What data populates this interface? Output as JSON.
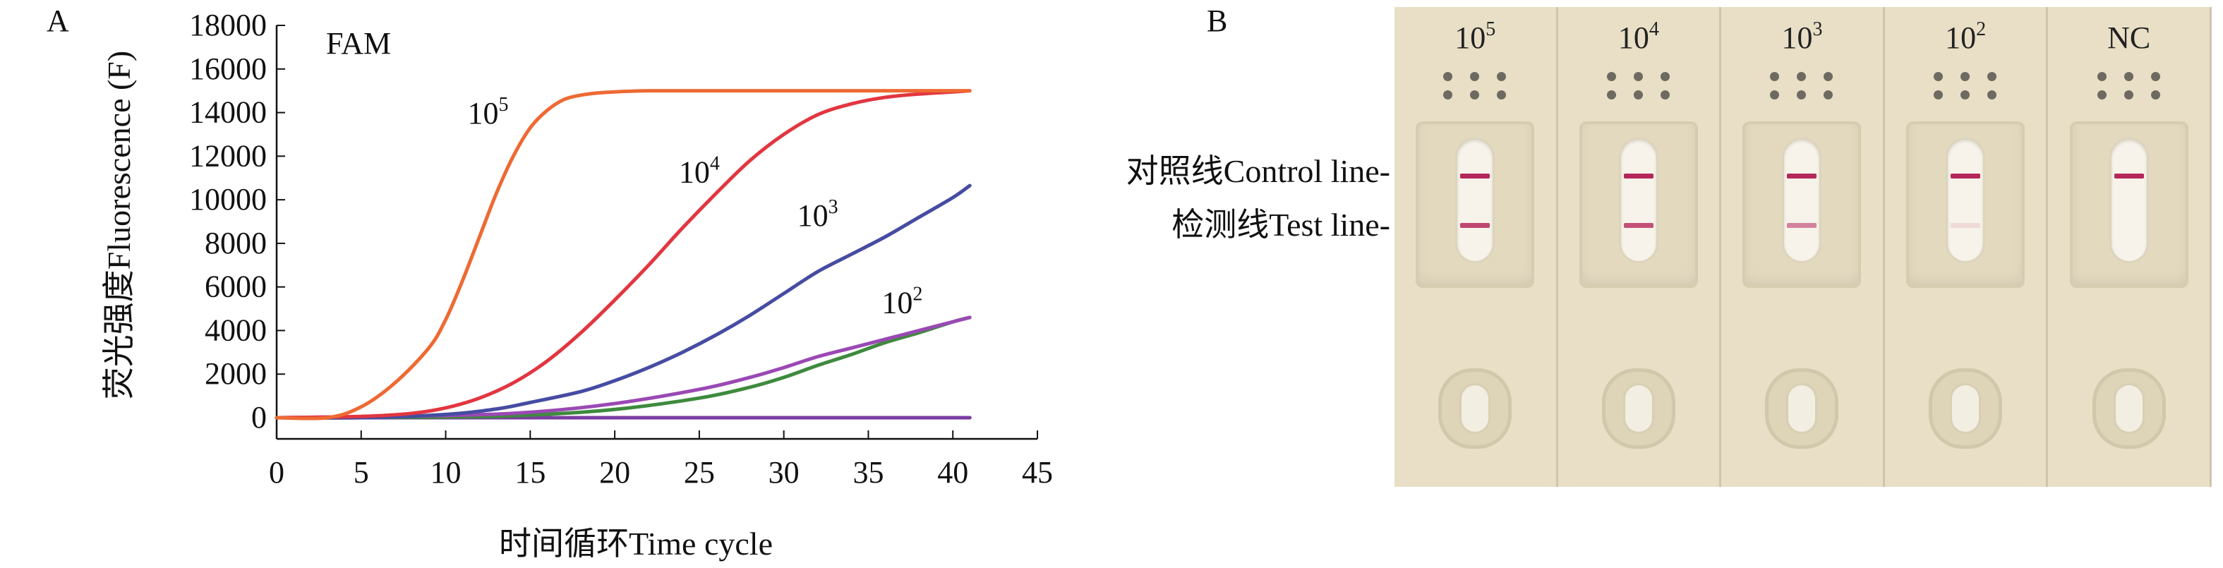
{
  "panel_a": {
    "letter": "A",
    "chart_data": {
      "type": "line",
      "title": "FAM",
      "xlabel": "时间循环Time cycle",
      "ylabel": "荧光强度Fluorescence (F)",
      "xlim": [
        0,
        45
      ],
      "ylim": [
        0,
        18000
      ],
      "x_ticks": [
        "0",
        "5",
        "10",
        "15",
        "20",
        "25",
        "30",
        "35",
        "40",
        "45"
      ],
      "y_ticks": [
        "0",
        "2000",
        "4000",
        "6000",
        "8000",
        "10000",
        "12000",
        "14000",
        "16000",
        "18000"
      ],
      "grid": false,
      "series": [
        {
          "name": "10^5",
          "color": "#ee6a33",
          "x": [
            0,
            3,
            5,
            7,
            9,
            10,
            11,
            12,
            13,
            14,
            15,
            16,
            17,
            18,
            19,
            20,
            22,
            25,
            30,
            35,
            41
          ],
          "y": [
            0,
            0,
            500,
            1600,
            3200,
            4500,
            6300,
            8300,
            10300,
            12000,
            13300,
            14100,
            14600,
            14800,
            14900,
            14950,
            15000,
            15000,
            15000,
            15000,
            15000
          ]
        },
        {
          "name": "10^4",
          "color": "#e23640",
          "x": [
            0,
            5,
            8,
            10,
            12,
            14,
            16,
            18,
            20,
            22,
            24,
            26,
            28,
            30,
            32,
            34,
            36,
            38,
            40,
            41
          ],
          "y": [
            0,
            60,
            200,
            450,
            900,
            1600,
            2600,
            3900,
            5400,
            7000,
            8700,
            10300,
            11800,
            13000,
            13900,
            14400,
            14700,
            14850,
            14950,
            15000
          ]
        },
        {
          "name": "10^3",
          "color": "#464ca2",
          "x": [
            0,
            5,
            10,
            13,
            15,
            18,
            20,
            22,
            24,
            26,
            28,
            30,
            32,
            34,
            36,
            38,
            40,
            41
          ],
          "y": [
            0,
            0,
            150,
            400,
            700,
            1200,
            1700,
            2300,
            3000,
            3800,
            4700,
            5700,
            6700,
            7500,
            8300,
            9200,
            10100,
            10650
          ]
        },
        {
          "name": "",
          "color": "#9a49b4",
          "x": [
            0,
            10,
            15,
            20,
            25,
            28,
            30,
            32,
            34,
            36,
            38,
            40,
            41
          ],
          "y": [
            0,
            100,
            250,
            650,
            1300,
            1850,
            2300,
            2800,
            3200,
            3600,
            4000,
            4400,
            4600
          ]
        },
        {
          "name": "",
          "color": "#3e8a3e",
          "x": [
            0,
            10,
            15,
            20,
            25,
            28,
            30,
            32,
            34,
            36,
            38,
            40,
            41
          ],
          "y": [
            0,
            30,
            120,
            380,
            900,
            1400,
            1850,
            2400,
            2900,
            3450,
            3900,
            4400,
            4600
          ]
        },
        {
          "name": "",
          "color": "#7b3da0",
          "x": [
            0,
            41
          ],
          "y": [
            0,
            0
          ]
        },
        {
          "name": "",
          "color": "#d8324f",
          "x": [
            0,
            41
          ],
          "y": [
            0,
            0
          ]
        }
      ],
      "annotations": [
        {
          "base": "10",
          "exp": "5",
          "x": 12.5,
          "y": 13500
        },
        {
          "base": "10",
          "exp": "4",
          "x": 25,
          "y": 10800
        },
        {
          "base": "10",
          "exp": "3",
          "x": 32,
          "y": 8800
        },
        {
          "base": "10",
          "exp": "2",
          "x": 37,
          "y": 4800
        }
      ]
    }
  },
  "panel_b": {
    "letter": "B",
    "control_line_label": "对照线Control line-",
    "test_line_label": "检测线Test line-",
    "strips": [
      {
        "base": "10",
        "exp": "5",
        "control_line": true,
        "test_line": true,
        "test_intensity": 0.85
      },
      {
        "base": "10",
        "exp": "4",
        "control_line": true,
        "test_line": true,
        "test_intensity": 0.8
      },
      {
        "base": "10",
        "exp": "3",
        "control_line": true,
        "test_line": true,
        "test_intensity": 0.55
      },
      {
        "base": "10",
        "exp": "2",
        "control_line": true,
        "test_line": true,
        "test_intensity": 0.12
      },
      {
        "base": "NC",
        "exp": "",
        "control_line": true,
        "test_line": false,
        "test_intensity": 0
      }
    ],
    "colors": {
      "line": "#b5275a",
      "cassette": "#e8dfc6"
    }
  }
}
